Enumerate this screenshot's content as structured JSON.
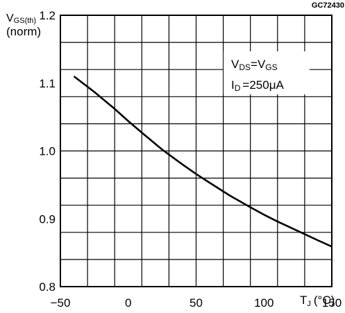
{
  "chart_data": {
    "type": "line",
    "figure_code": "GC72430",
    "ylabel": {
      "main": "V",
      "sub": "GS(th)",
      "line2": "(norm)"
    },
    "xlabel": {
      "main": "T",
      "sub": "J",
      "unit": "(°C)"
    },
    "xlim": [
      -50,
      150
    ],
    "ylim": [
      0.8,
      1.2
    ],
    "x_ticks": [
      -50,
      0,
      50,
      100,
      150
    ],
    "x_tick_labels": [
      "−50",
      "0",
      "50",
      "100",
      "150"
    ],
    "y_ticks": [
      0.8,
      0.9,
      1.0,
      1.1,
      1.2
    ],
    "y_tick_labels": [
      "0.8",
      "0.9",
      "1.0",
      "1.1",
      "1.2"
    ],
    "grid": true,
    "conditions": {
      "line1": {
        "a": "V",
        "a_sub": "DS",
        "eq": "=",
        "b": "V",
        "b_sub": "GS"
      },
      "line2": {
        "a": "I",
        "a_sub": "D",
        "eq": "=",
        "value": "250",
        "unit": "μA"
      }
    },
    "series": [
      {
        "x": [
          -40,
          -25,
          -10,
          0,
          10,
          25,
          40,
          50,
          60,
          75,
          90,
          100,
          110,
          125,
          140,
          150
        ],
        "y": [
          1.11,
          1.087,
          1.062,
          1.044,
          1.027,
          1.002,
          0.98,
          0.966,
          0.953,
          0.934,
          0.917,
          0.906,
          0.896,
          0.882,
          0.868,
          0.859
        ]
      }
    ]
  }
}
